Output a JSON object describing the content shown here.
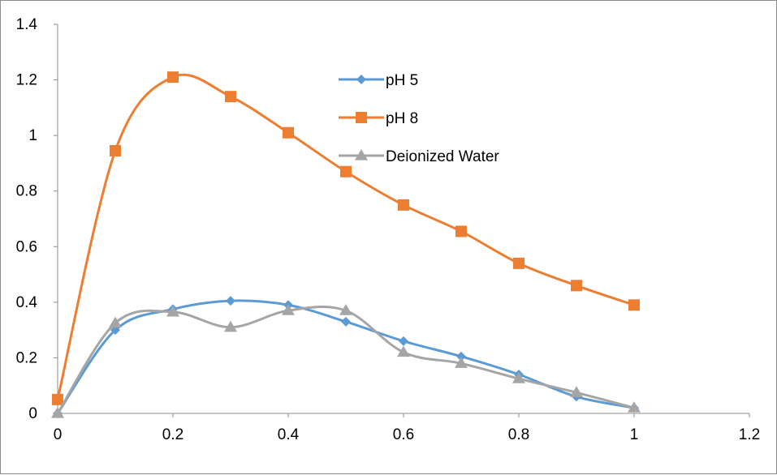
{
  "chart_data": {
    "type": "line",
    "smooth": true,
    "title": "",
    "xlabel": "",
    "ylabel": "",
    "xlim": [
      0,
      1.2
    ],
    "ylim": [
      0,
      1.4
    ],
    "x_ticks": [
      "0",
      "0.2",
      "0.4",
      "0.6",
      "0.8",
      "1",
      "1.2"
    ],
    "y_ticks": [
      "0",
      "0.2",
      "0.4",
      "0.6",
      "0.8",
      "1",
      "1.2",
      "1.4"
    ],
    "grid": false,
    "legend_position": "upper-center",
    "x": [
      0,
      0.1,
      0.2,
      0.3,
      0.4,
      0.5,
      0.6,
      0.7,
      0.8,
      0.9,
      1.0
    ],
    "series": [
      {
        "name": "pH 5",
        "color": "#5B9BD5",
        "marker": "diamond",
        "values": [
          0,
          0.3,
          0.375,
          0.405,
          0.39,
          0.33,
          0.26,
          0.205,
          0.14,
          0.06,
          0.02
        ]
      },
      {
        "name": "pH 8",
        "color": "#ED7D31",
        "marker": "square",
        "values": [
          0.05,
          0.945,
          1.21,
          1.14,
          1.01,
          0.87,
          0.75,
          0.655,
          0.54,
          0.46,
          0.39
        ]
      },
      {
        "name": "Deionized Water",
        "color": "#A5A5A5",
        "marker": "triangle",
        "values": [
          0,
          0.325,
          0.365,
          0.31,
          0.37,
          0.37,
          0.22,
          0.18,
          0.125,
          0.075,
          0.02
        ]
      }
    ]
  }
}
